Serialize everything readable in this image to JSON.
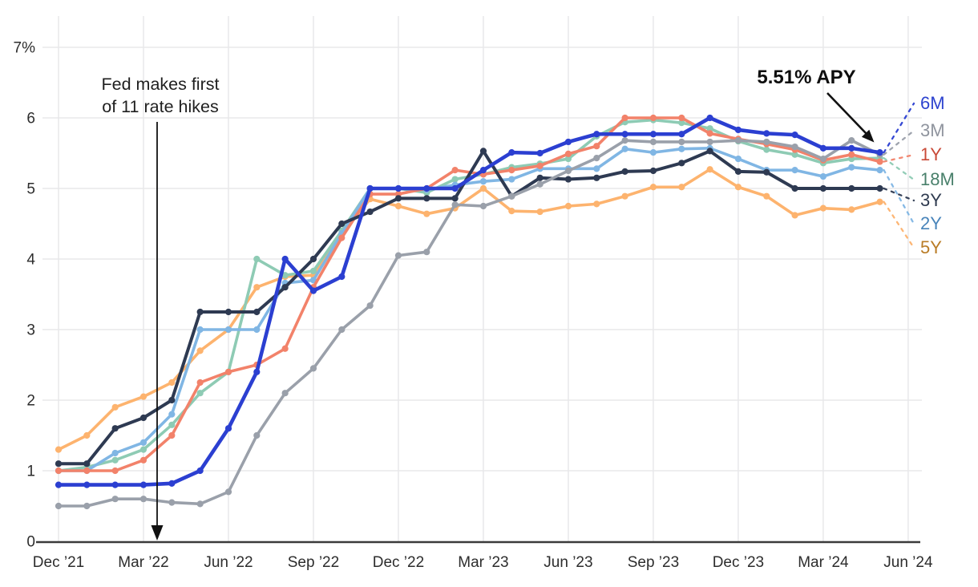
{
  "chart_data": {
    "type": "line",
    "unit": "percent APY",
    "grid": true,
    "legend_position": "right",
    "x_tick_labels": [
      "Dec ’21",
      "Mar ’22",
      "Jun ’22",
      "Sep ’22",
      "Dec ’22",
      "Mar ’23",
      "Jun ’23",
      "Sep ’23",
      "Dec ’23",
      "Mar ’24",
      "Jun ’24"
    ],
    "y_tick_labels": [
      "7%",
      "6",
      "5",
      "4",
      "3",
      "2",
      "1",
      "0"
    ],
    "ylim": [
      0,
      7
    ],
    "months": [
      "Dec 2021",
      "Jan 2022",
      "Feb 2022",
      "Mar 2022",
      "Apr 2022",
      "May 2022",
      "Jun 2022",
      "Jul 2022",
      "Aug 2022",
      "Sep 2022",
      "Oct 2022",
      "Nov 2022",
      "Dec 2022",
      "Jan 2023",
      "Feb 2023",
      "Mar 2023",
      "Apr 2023",
      "May 2023",
      "Jun 2023",
      "Jul 2023",
      "Aug 2023",
      "Sep 2023",
      "Oct 2023",
      "Nov 2023",
      "Dec 2023",
      "Jan 2024",
      "Feb 2024",
      "Mar 2024",
      "Apr 2024",
      "May 2024"
    ],
    "series": [
      {
        "name": "6M",
        "color": "#2b3fd1",
        "label_color": "#2d43cf",
        "line_width": 4.6,
        "values": [
          0.8,
          0.8,
          0.8,
          0.8,
          0.82,
          1.0,
          1.6,
          2.4,
          4.0,
          3.55,
          3.75,
          5.0,
          5.0,
          5.0,
          5.0,
          5.26,
          5.51,
          5.5,
          5.66,
          5.77,
          5.77,
          5.77,
          5.77,
          6.0,
          5.83,
          5.78,
          5.76,
          5.57,
          5.57,
          5.51
        ]
      },
      {
        "name": "3M",
        "color": "#9aa0aa",
        "label_color": "#8f949e",
        "line_width": 3.6,
        "values": [
          0.5,
          0.5,
          0.6,
          0.6,
          0.55,
          0.53,
          0.7,
          1.5,
          2.1,
          2.45,
          3.0,
          3.34,
          4.05,
          4.1,
          4.77,
          4.75,
          4.89,
          5.06,
          5.25,
          5.43,
          5.68,
          5.66,
          5.66,
          5.66,
          5.68,
          5.66,
          5.59,
          5.42,
          5.68,
          5.48
        ]
      },
      {
        "name": "1Y",
        "color": "#f2826a",
        "label_color": "#c94a38",
        "line_width": 3.6,
        "values": [
          1.0,
          1.0,
          1.0,
          1.15,
          1.5,
          2.25,
          2.4,
          2.5,
          2.73,
          3.6,
          4.3,
          4.92,
          4.92,
          5.0,
          5.26,
          5.2,
          5.26,
          5.32,
          5.49,
          5.6,
          6.0,
          6.0,
          6.0,
          5.78,
          5.7,
          5.63,
          5.55,
          5.4,
          5.48,
          5.38
        ]
      },
      {
        "name": "18M",
        "color": "#8ecbb4",
        "label_color": "#49806b",
        "line_width": 3.6,
        "values": [
          1.0,
          1.05,
          1.15,
          1.3,
          1.65,
          2.1,
          2.4,
          4.0,
          3.77,
          3.83,
          4.4,
          5.0,
          5.0,
          4.94,
          5.13,
          5.2,
          5.3,
          5.35,
          5.42,
          5.74,
          5.94,
          5.97,
          5.93,
          5.85,
          5.67,
          5.55,
          5.48,
          5.36,
          5.42,
          5.43
        ]
      },
      {
        "name": "3Y",
        "color": "#2e3a52",
        "label_color": "#2f3b50",
        "line_width": 4.0,
        "values": [
          1.1,
          1.1,
          1.6,
          1.75,
          2.0,
          3.25,
          3.25,
          3.25,
          3.6,
          4.0,
          4.5,
          4.67,
          4.86,
          4.86,
          4.86,
          5.53,
          4.89,
          5.15,
          5.13,
          5.15,
          5.24,
          5.25,
          5.36,
          5.53,
          5.24,
          5.23,
          5.0,
          5.0,
          5.0,
          5.0
        ]
      },
      {
        "name": "2Y",
        "color": "#80b6e4",
        "label_color": "#4884ba",
        "line_width": 3.6,
        "values": [
          1.0,
          1.0,
          1.25,
          1.4,
          1.8,
          3.0,
          3.0,
          3.0,
          3.66,
          3.7,
          4.36,
          5.0,
          5.0,
          4.98,
          5.05,
          5.1,
          5.13,
          5.28,
          5.28,
          5.28,
          5.56,
          5.51,
          5.56,
          5.57,
          5.42,
          5.26,
          5.26,
          5.17,
          5.3,
          5.26
        ]
      },
      {
        "name": "5Y",
        "color": "#fdb36e",
        "label_color": "#b97c26",
        "line_width": 3.6,
        "values": [
          1.3,
          1.5,
          1.9,
          2.05,
          2.25,
          2.7,
          3.0,
          3.6,
          3.75,
          3.77,
          4.35,
          4.85,
          4.75,
          4.64,
          4.72,
          5.0,
          4.68,
          4.67,
          4.75,
          4.78,
          4.89,
          5.02,
          5.02,
          5.27,
          5.02,
          4.89,
          4.62,
          4.72,
          4.7,
          4.81
        ]
      }
    ],
    "render_order": [
      "5Y",
      "18M",
      "2Y",
      "1Y",
      "3Y",
      "3M",
      "6M"
    ]
  },
  "annotations": {
    "fed_line1": "Fed makes first",
    "fed_line2": "of 11 rate hikes",
    "apy_label": "5.51% APY"
  }
}
